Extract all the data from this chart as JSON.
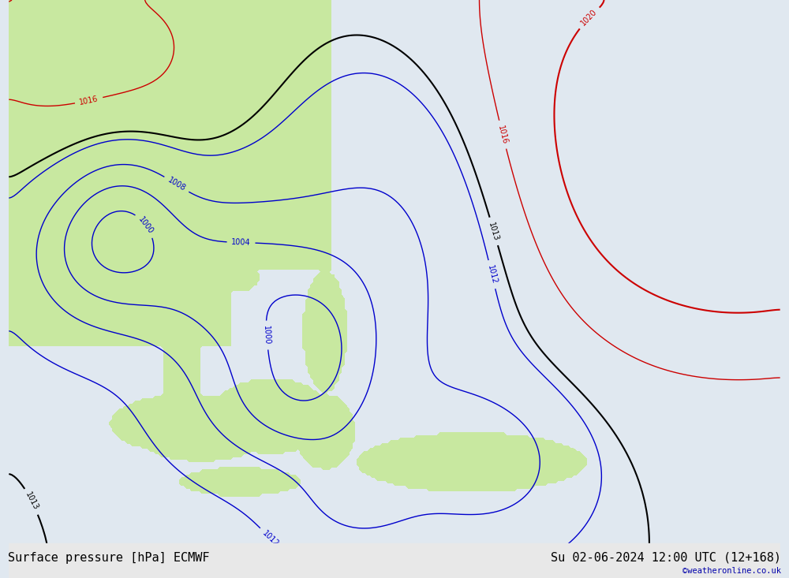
{
  "title_left": "Surface pressure [hPa] ECMWF",
  "title_right": "Su 02-06-2024 12:00 UTC (12+168)",
  "credit": "©weatheronline.co.uk",
  "bg_color": "#d8e8f0",
  "land_color_green": "#c8e8a0",
  "land_color_gray": "#c8c8c8",
  "contour_blue": "#0000cc",
  "contour_black": "#000000",
  "contour_red": "#cc0000",
  "xlim": [
    80,
    180
  ],
  "ylim": [
    -20,
    55
  ],
  "figsize": [
    10,
    7.33
  ],
  "dpi": 100,
  "title_fontsize": 11,
  "label_fontsize": 7,
  "credit_fontsize": 7.5
}
